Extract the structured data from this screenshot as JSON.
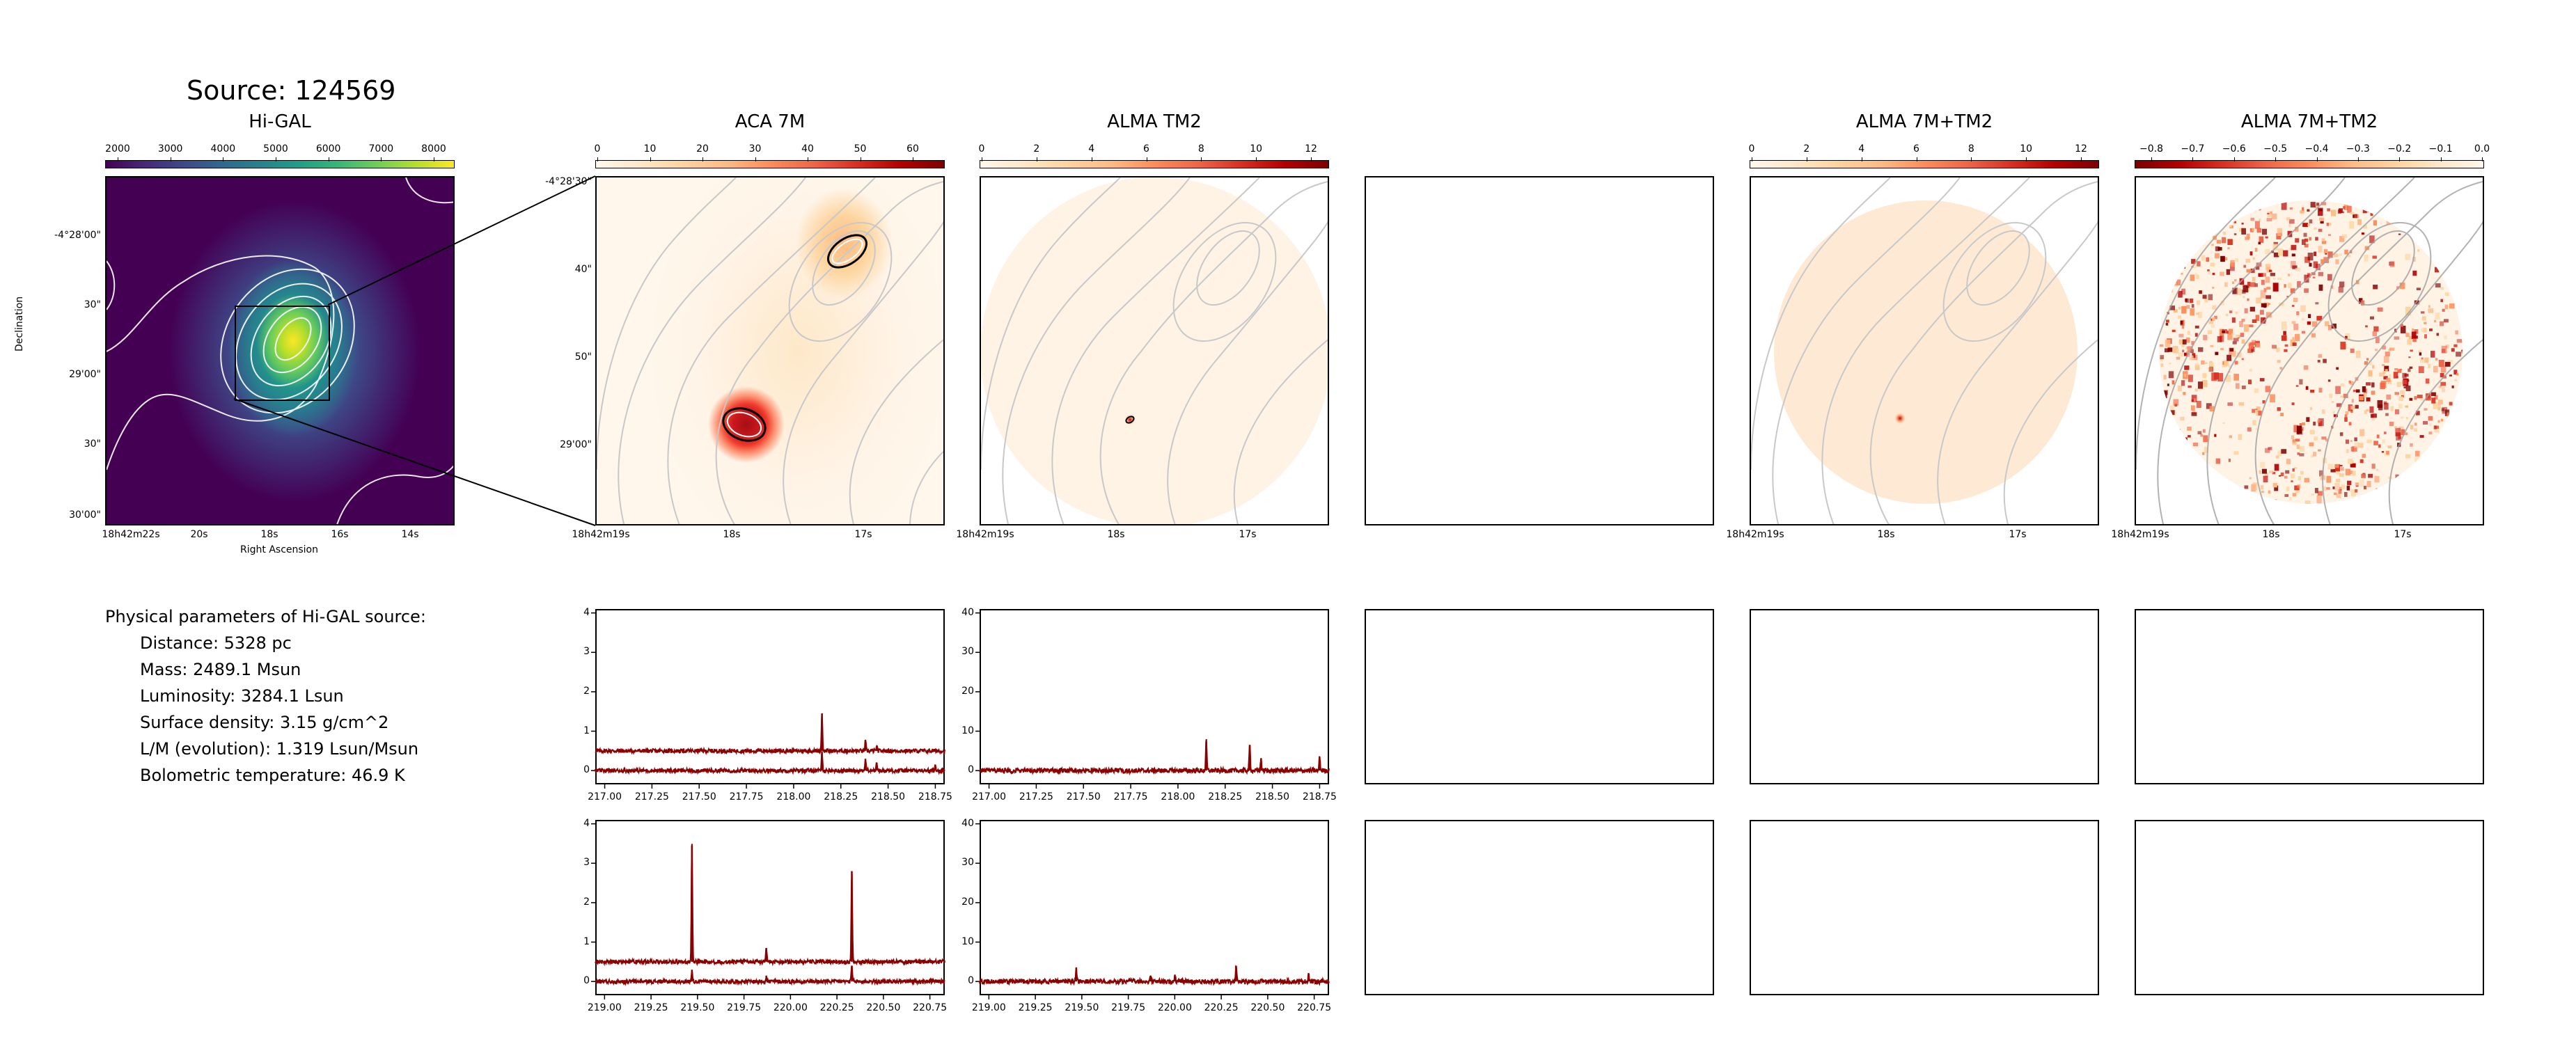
{
  "page": {
    "title": "Source: 124569"
  },
  "panels": {
    "higal": {
      "title": "Hi-GAL",
      "colorbar_ticks": [
        "2000",
        "3000",
        "4000",
        "5000",
        "6000",
        "7000",
        "8000"
      ],
      "colormap": "viridis",
      "y_ticks": [
        "-4°28'00\"",
        "30\"",
        "29'00\"",
        "30\"",
        "30'00\""
      ],
      "x_ticks": [
        "18h42m22s",
        "20s",
        "18s",
        "16s",
        "14s"
      ],
      "xlabel": "Right Ascension",
      "ylabel": "Declination"
    },
    "aca7m": {
      "title": "ACA 7M",
      "colorbar_ticks": [
        "0",
        "10",
        "20",
        "30",
        "40",
        "50",
        "60"
      ],
      "colormap": "OrRd",
      "y_ticks": [
        "-4°28'30\"",
        "40\"",
        "50\"",
        "29'00\""
      ],
      "x_ticks": [
        "18h42m19s",
        "18s",
        "17s"
      ]
    },
    "almatm2": {
      "title": "ALMA TM2",
      "colorbar_ticks": [
        "0",
        "2",
        "4",
        "6",
        "8",
        "10",
        "12"
      ],
      "colormap": "OrRd",
      "x_ticks": [
        "18h42m19s",
        "18s",
        "17s"
      ]
    },
    "alma7mtm2": {
      "title": "ALMA 7M+TM2",
      "colorbar_ticks": [
        "0",
        "2",
        "4",
        "6",
        "8",
        "10",
        "12"
      ],
      "colormap": "OrRd",
      "x_ticks": [
        "18h42m19s",
        "18s",
        "17s"
      ]
    },
    "alma7mtm2_resid": {
      "title": "ALMA 7M+TM2",
      "colorbar_ticks": [
        "−0.8",
        "−0.7",
        "−0.6",
        "−0.5",
        "−0.4",
        "−0.3",
        "−0.2",
        "−0.1",
        "0.0"
      ],
      "colormap": "OrRd_r",
      "x_ticks": [
        "18h42m19s",
        "18s",
        "17s"
      ]
    }
  },
  "params": {
    "heading": "Physical parameters of Hi-GAL source:",
    "distance": "Distance: 5328 pc",
    "mass": "Mass: 2489.1 Msun",
    "luminosity": "Luminosity: 3284.1 Lsun",
    "surface_density": "Surface density: 3.15 g/cm^2",
    "lm": "L/M (evolution): 1.319 Lsun/Msun",
    "tbol": "Bolometric temperature: 46.9 K"
  },
  "colors": {
    "spectrum": "#8b0000",
    "contour_map": "#c8c8c8",
    "contour_higal": "#ffffff"
  },
  "chart_data": [
    {
      "type": "line",
      "panel": "spectrum-aca-row1",
      "x_ticks": [
        "217.00",
        "217.25",
        "217.50",
        "217.75",
        "218.00",
        "218.25",
        "218.50",
        "218.75"
      ],
      "y_ticks": [
        "0",
        "1",
        "2",
        "3",
        "4"
      ],
      "xlim": [
        216.95,
        218.8
      ],
      "ylim": [
        -0.35,
        4.1
      ],
      "series": [
        {
          "baseline": 0.5,
          "noise": 0.05,
          "lines": [
            [
              218.15,
              0.95
            ],
            [
              218.38,
              0.25
            ],
            [
              218.44,
              0.1
            ]
          ]
        },
        {
          "baseline": 0.0,
          "noise": 0.05,
          "lines": [
            [
              218.15,
              0.45
            ],
            [
              218.38,
              0.3
            ],
            [
              218.44,
              0.2
            ],
            [
              218.75,
              0.15
            ]
          ]
        }
      ]
    },
    {
      "type": "line",
      "panel": "spectrum-tm2-row1",
      "x_ticks": [
        "217.00",
        "217.25",
        "217.50",
        "217.75",
        "218.00",
        "218.25",
        "218.50",
        "218.75"
      ],
      "y_ticks": [
        "0",
        "10",
        "20",
        "30",
        "40"
      ],
      "xlim": [
        216.95,
        218.8
      ],
      "ylim": [
        -3.5,
        41
      ],
      "series": [
        {
          "baseline": 0.0,
          "noise": 0.6,
          "lines": [
            [
              218.15,
              7.5
            ],
            [
              218.38,
              6.5
            ],
            [
              218.44,
              3.0
            ],
            [
              218.75,
              3.5
            ]
          ]
        }
      ]
    },
    {
      "type": "line",
      "panel": "spectrum-aca-row2",
      "x_ticks": [
        "219.00",
        "219.25",
        "219.50",
        "219.75",
        "220.00",
        "220.25",
        "220.50",
        "220.75"
      ],
      "y_ticks": [
        "0",
        "1",
        "2",
        "3",
        "4"
      ],
      "xlim": [
        218.95,
        220.83
      ],
      "ylim": [
        -0.35,
        4.1
      ],
      "series": [
        {
          "baseline": 0.5,
          "noise": 0.05,
          "lines": [
            [
              219.47,
              2.95
            ],
            [
              219.87,
              0.35
            ],
            [
              220.33,
              2.3
            ]
          ]
        },
        {
          "baseline": 0.0,
          "noise": 0.05,
          "lines": [
            [
              219.47,
              0.3
            ],
            [
              220.33,
              0.4
            ],
            [
              219.87,
              0.15
            ]
          ]
        }
      ]
    },
    {
      "type": "line",
      "panel": "spectrum-tm2-row2",
      "x_ticks": [
        "219.00",
        "219.25",
        "219.50",
        "219.75",
        "220.00",
        "220.25",
        "220.50",
        "220.75"
      ],
      "y_ticks": [
        "0",
        "10",
        "20",
        "30",
        "40"
      ],
      "xlim": [
        218.95,
        220.83
      ],
      "ylim": [
        -3.5,
        41
      ],
      "series": [
        {
          "baseline": 0.0,
          "noise": 0.6,
          "lines": [
            [
              219.47,
              3.5
            ],
            [
              219.87,
              1.5
            ],
            [
              220.0,
              1.5
            ],
            [
              220.33,
              4.0
            ],
            [
              220.72,
              2.0
            ]
          ]
        }
      ]
    }
  ]
}
